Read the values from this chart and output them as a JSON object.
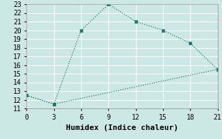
{
  "xlabel": "Humidex (Indice chaleur)",
  "ylabel": "",
  "background_color": "#cce8e4",
  "grid_color": "#ffffff",
  "line_color": "#1a7a6e",
  "line1_x": [
    0,
    3,
    6,
    9,
    12,
    15,
    18,
    21
  ],
  "line1_y": [
    12.5,
    11.5,
    20,
    23,
    21,
    20,
    18.5,
    15.5
  ],
  "line2_x": [
    0,
    3,
    21
  ],
  "line2_y": [
    12.5,
    11.5,
    15.5
  ],
  "xlim": [
    0,
    21
  ],
  "ylim": [
    11,
    23
  ],
  "xticks": [
    0,
    3,
    6,
    9,
    12,
    15,
    18,
    21
  ],
  "yticks": [
    11,
    12,
    13,
    14,
    15,
    16,
    17,
    18,
    19,
    20,
    21,
    22,
    23
  ],
  "font": "monospace",
  "axis_fontsize": 8,
  "tick_fontsize": 7
}
